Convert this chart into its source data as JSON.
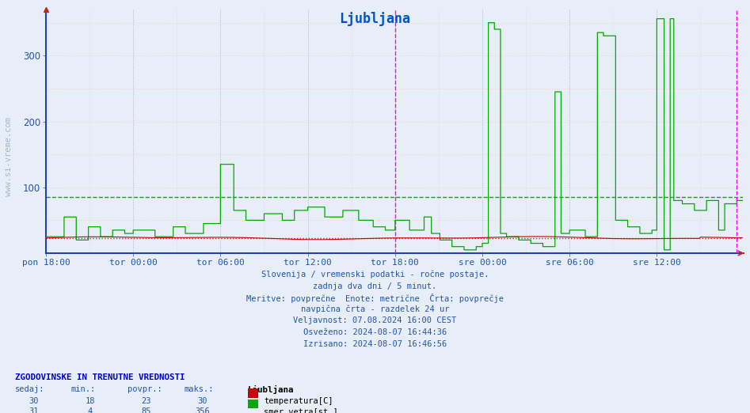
{
  "title": "Ljubljana",
  "title_color": "#0055cc",
  "bg_color": "#e8eef8",
  "plot_bg_color": "#e8eef8",
  "xlabel_ticks": [
    "pon 18:00",
    "tor 00:00",
    "tor 06:00",
    "tor 12:00",
    "tor 18:00",
    "sre 00:00",
    "sre 06:00",
    "sre 12:00"
  ],
  "ylim": [
    0,
    370
  ],
  "yticks": [
    100,
    200,
    300
  ],
  "temp_color": "#cc0000",
  "wind_dir_color": "#00aa00",
  "avg_wind_dir_line": 85,
  "avg_wind_dir_color": "#008800",
  "avg_temp_line": 23,
  "avg_temp_color": "#cc0000",
  "vertical_line_color": "#ff00ff",
  "grid_h_color": "#ffcccc",
  "grid_v_color": "#bbbbdd",
  "watermark": "www.si-vreme.com",
  "watermark_color": "#336699",
  "axis_color": "#2244aa",
  "tick_color": "#2255aa",
  "footnote_color": "#2255aa",
  "footnote_lines": [
    "Slovenija / vremenski podatki - ročne postaje.",
    "zadnja dva dni / 5 minut.",
    "Meritve: povprečne  Enote: metrične  Črta: povprečje",
    "navpična črta - razdelek 24 ur",
    "Veljavnost: 07.08.2024 16:00 CEST",
    "Osveženo: 2024-08-07 16:44:36",
    "Izrisano: 2024-08-07 16:46:56"
  ],
  "table_header": "ZGODOVINSKE IN TRENUTNE VREDNOSTI",
  "table_cols": [
    "sedaj:",
    "min.:",
    "povpr.:",
    "maks.:"
  ],
  "table_col_station": "Ljubljana",
  "table_row1": {
    "sedaj": "30",
    "min": "18",
    "povpr": "23",
    "maks": "30",
    "label": "temperatura[C]",
    "color": "#cc0000"
  },
  "table_row2": {
    "sedaj": "31",
    "min": "4",
    "povpr": "85",
    "maks": "356",
    "label": "smer vetra[st.]",
    "color": "#00aa00"
  },
  "n_points": 576,
  "tick_positions_idx": [
    0,
    72,
    144,
    216,
    288,
    360,
    432,
    504
  ],
  "vline1_idx": 288,
  "vline2_idx": 570
}
